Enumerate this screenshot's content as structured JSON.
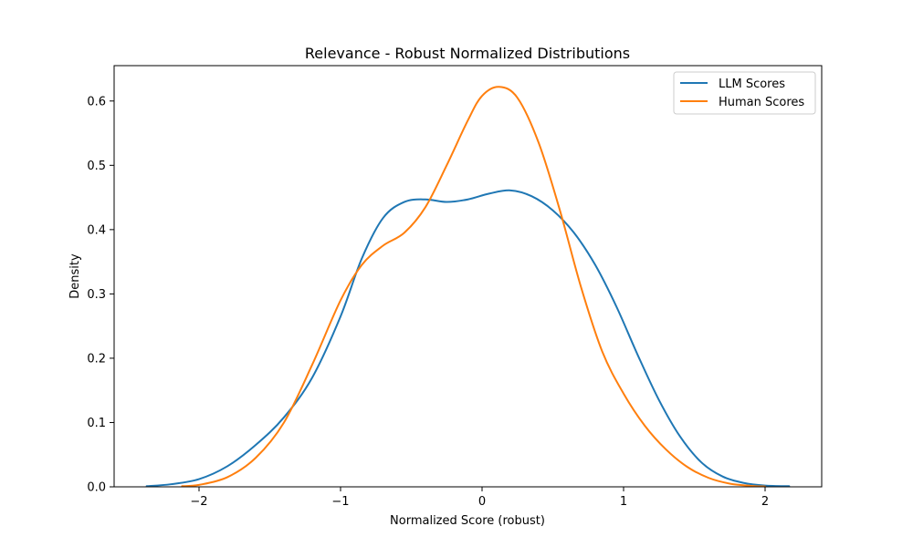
{
  "chart_data": {
    "type": "line",
    "title": "Relevance - Robust Normalized Distributions",
    "xlabel": "Normalized Score (robust)",
    "ylabel": "Density",
    "xlim": [
      -2.6,
      2.4
    ],
    "ylim": [
      0,
      0.655
    ],
    "xticks": [
      -2,
      -1,
      0,
      1,
      2
    ],
    "xtick_labels": [
      "−2",
      "−1",
      "0",
      "1",
      "2"
    ],
    "yticks": [
      0.0,
      0.1,
      0.2,
      0.3,
      0.4,
      0.5,
      0.6
    ],
    "ytick_labels": [
      "0.0",
      "0.1",
      "0.2",
      "0.3",
      "0.4",
      "0.5",
      "0.6"
    ],
    "grid": false,
    "legend_position": "top-right",
    "series": [
      {
        "name": "LLM Scores",
        "color": "#1f77b4",
        "points": [
          [
            -2.37,
            0.001
          ],
          [
            -2.2,
            0.004
          ],
          [
            -2.0,
            0.012
          ],
          [
            -1.8,
            0.032
          ],
          [
            -1.6,
            0.065
          ],
          [
            -1.4,
            0.108
          ],
          [
            -1.2,
            0.17
          ],
          [
            -1.0,
            0.265
          ],
          [
            -0.85,
            0.355
          ],
          [
            -0.7,
            0.418
          ],
          [
            -0.55,
            0.443
          ],
          [
            -0.4,
            0.447
          ],
          [
            -0.25,
            0.443
          ],
          [
            -0.1,
            0.447
          ],
          [
            0.05,
            0.456
          ],
          [
            0.2,
            0.461
          ],
          [
            0.35,
            0.452
          ],
          [
            0.5,
            0.43
          ],
          [
            0.65,
            0.395
          ],
          [
            0.8,
            0.345
          ],
          [
            0.95,
            0.28
          ],
          [
            1.1,
            0.205
          ],
          [
            1.25,
            0.135
          ],
          [
            1.4,
            0.078
          ],
          [
            1.55,
            0.038
          ],
          [
            1.7,
            0.016
          ],
          [
            1.85,
            0.006
          ],
          [
            2.0,
            0.002
          ],
          [
            2.17,
            0.001
          ]
        ]
      },
      {
        "name": "Human Scores",
        "color": "#ff7f0e",
        "points": [
          [
            -2.12,
            0.001
          ],
          [
            -2.0,
            0.003
          ],
          [
            -1.8,
            0.015
          ],
          [
            -1.6,
            0.045
          ],
          [
            -1.4,
            0.1
          ],
          [
            -1.2,
            0.19
          ],
          [
            -1.0,
            0.29
          ],
          [
            -0.85,
            0.345
          ],
          [
            -0.7,
            0.375
          ],
          [
            -0.55,
            0.395
          ],
          [
            -0.4,
            0.435
          ],
          [
            -0.25,
            0.5
          ],
          [
            -0.1,
            0.57
          ],
          [
            0.0,
            0.608
          ],
          [
            0.12,
            0.622
          ],
          [
            0.25,
            0.605
          ],
          [
            0.4,
            0.535
          ],
          [
            0.55,
            0.43
          ],
          [
            0.7,
            0.31
          ],
          [
            0.85,
            0.21
          ],
          [
            1.0,
            0.145
          ],
          [
            1.15,
            0.095
          ],
          [
            1.3,
            0.058
          ],
          [
            1.45,
            0.031
          ],
          [
            1.6,
            0.014
          ],
          [
            1.75,
            0.005
          ],
          [
            1.9,
            0.0015
          ],
          [
            2.0,
            0.0005
          ]
        ]
      }
    ]
  }
}
